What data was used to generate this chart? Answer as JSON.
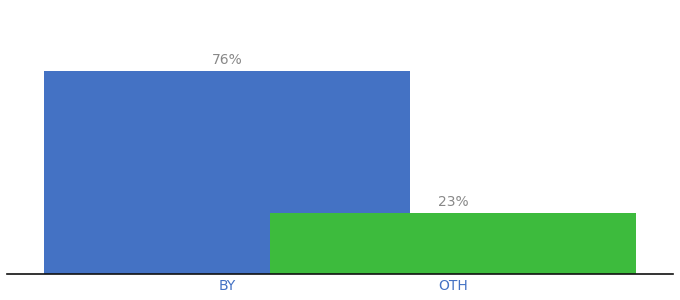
{
  "categories": [
    "BY",
    "OTH"
  ],
  "values": [
    76,
    23
  ],
  "bar_colors": [
    "#4472c4",
    "#3dbb3d"
  ],
  "label_texts": [
    "76%",
    "23%"
  ],
  "ylim": [
    0,
    100
  ],
  "background_color": "#ffffff",
  "label_color": "#888888",
  "label_fontsize": 10,
  "tick_fontsize": 10,
  "tick_color": "#4472c4",
  "bar_width": 0.55,
  "x_positions": [
    0.33,
    0.67
  ],
  "xlim": [
    0.0,
    1.0
  ]
}
